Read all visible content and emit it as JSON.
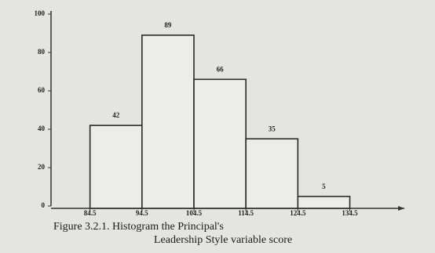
{
  "chart_data": {
    "type": "histogram",
    "caption": [
      "Figure 3.2.1. Histogram the Principal's",
      "Leadership Style variable score"
    ],
    "bins": [
      84.5,
      94.5,
      104.5,
      114.5,
      124.5,
      134.5
    ],
    "values": [
      42,
      89,
      66,
      35,
      5
    ],
    "color": "#ecece9",
    "edge_color": "#2a2a2a",
    "xlim": [
      77,
      145
    ],
    "ylim": [
      0,
      100
    ],
    "yticks": [
      0,
      20,
      40,
      60,
      80,
      100
    ]
  }
}
